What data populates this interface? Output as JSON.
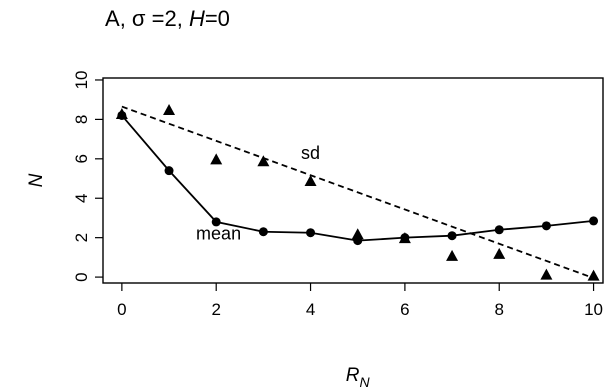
{
  "title": {
    "panel": "A",
    "sigma_label": "σ =2,",
    "h_label": "H",
    "h_value": "=0"
  },
  "chart_data": {
    "type": "line",
    "xlabel": "R",
    "xlabel_sub": "N",
    "ylabel": "N",
    "xlim": [
      -0.4,
      10.2
    ],
    "ylim": [
      -0.3,
      10.1
    ],
    "xticks": [
      0,
      2,
      4,
      6,
      8,
      10
    ],
    "yticks": [
      0,
      2,
      4,
      6,
      8,
      10
    ],
    "grid": false,
    "series": [
      {
        "name": "mean",
        "style": "solid",
        "marker": "circle",
        "points": [
          [
            0,
            8.2
          ],
          [
            1,
            5.4
          ],
          [
            2,
            2.8
          ],
          [
            3,
            2.3
          ],
          [
            4,
            2.25
          ],
          [
            5,
            1.85
          ],
          [
            6,
            2.0
          ],
          [
            7,
            2.1
          ],
          [
            8,
            2.4
          ],
          [
            9,
            2.6
          ],
          [
            10,
            2.85
          ]
        ]
      },
      {
        "name": "sd",
        "style": "dashed",
        "marker": "triangle",
        "points": [
          [
            0,
            8.3
          ],
          [
            1,
            8.5
          ],
          [
            2,
            6.0
          ],
          [
            3,
            5.9
          ],
          [
            4,
            4.9
          ],
          [
            5,
            2.2
          ],
          [
            6,
            2.0
          ],
          [
            7,
            1.1
          ],
          [
            8,
            1.2
          ],
          [
            9,
            0.15
          ],
          [
            10,
            0.1
          ]
        ],
        "line": [
          [
            0,
            8.65
          ],
          [
            10,
            -0.05
          ]
        ]
      }
    ],
    "annotations": [
      {
        "text": "sd",
        "series": "sd",
        "x": 4.0,
        "y": 6.0
      },
      {
        "text": "mean",
        "series": "mean",
        "x": 2.05,
        "y": 1.9
      }
    ]
  }
}
